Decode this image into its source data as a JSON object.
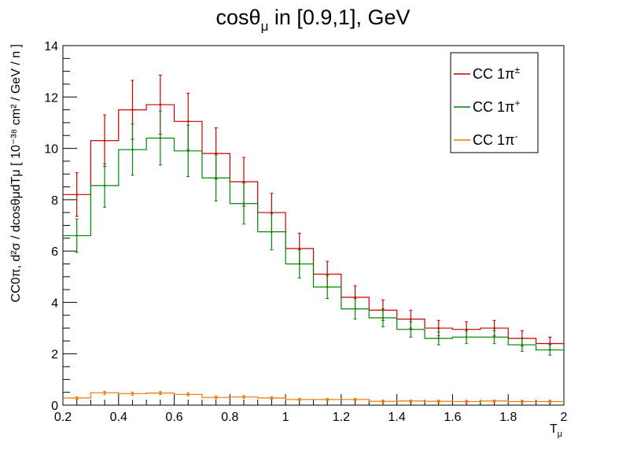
{
  "chart_data": {
    "type": "line",
    "drawstyle": "step-histogram",
    "title": {
      "main": "cos",
      "theta": "θ",
      "sub": "μ",
      "rest": " in [0.9,1], GeV"
    },
    "xlabel": {
      "main": "T",
      "sub": "μ"
    },
    "ylabel": "CC0π, d²σ / dcosθμdTμ [ 10⁻³⁸ cm² / GeV / n ]",
    "xlim": [
      0.2,
      2.0
    ],
    "ylim": [
      0,
      14
    ],
    "x_ticks": [
      0.2,
      0.4,
      0.6,
      0.8,
      1.0,
      1.2,
      1.4,
      1.6,
      1.8,
      2.0
    ],
    "x_tick_labels": [
      "0.2",
      "0.4",
      "0.6",
      "0.8",
      "1",
      "1.2",
      "1.4",
      "1.6",
      "1.8",
      "2"
    ],
    "y_ticks": [
      0,
      2,
      4,
      6,
      8,
      10,
      12,
      14
    ],
    "y_tick_labels": [
      "0",
      "2",
      "4",
      "6",
      "8",
      "10",
      "12",
      "14"
    ],
    "bin_edges": [
      0.2,
      0.3,
      0.4,
      0.5,
      0.6,
      0.7,
      0.8,
      0.9,
      1.0,
      1.1,
      1.2,
      1.3,
      1.4,
      1.5,
      1.6,
      1.7,
      1.8,
      1.9,
      2.0
    ],
    "legend_position": "top-right",
    "series": [
      {
        "name": "CC 1π±",
        "color": "#cc0000",
        "values": [
          8.2,
          10.3,
          11.5,
          11.7,
          11.05,
          9.8,
          8.7,
          7.5,
          6.1,
          5.1,
          4.2,
          3.7,
          3.35,
          3.0,
          2.95,
          3.0,
          2.6,
          2.4
        ],
        "errors": [
          0.85,
          1.0,
          1.15,
          1.15,
          1.1,
          1.0,
          0.95,
          0.75,
          0.6,
          0.5,
          0.45,
          0.4,
          0.35,
          0.3,
          0.3,
          0.3,
          0.3,
          0.25
        ]
      },
      {
        "name": "CC 1π+",
        "color": "#008800",
        "values": [
          6.6,
          8.55,
          9.95,
          10.4,
          9.9,
          8.85,
          7.85,
          6.75,
          5.5,
          4.6,
          3.75,
          3.4,
          2.95,
          2.6,
          2.65,
          2.65,
          2.35,
          2.15
        ],
        "errors": [
          0.65,
          0.85,
          1.0,
          1.05,
          1.0,
          0.9,
          0.8,
          0.7,
          0.55,
          0.45,
          0.4,
          0.35,
          0.3,
          0.25,
          0.25,
          0.25,
          0.25,
          0.2
        ]
      },
      {
        "name": "CC 1π-",
        "color": "#ee7700",
        "values": [
          0.28,
          0.48,
          0.45,
          0.47,
          0.42,
          0.3,
          0.32,
          0.28,
          0.22,
          0.22,
          0.22,
          0.15,
          0.16,
          0.15,
          0.14,
          0.16,
          0.14,
          0.14
        ],
        "errors": [
          0.05,
          0.06,
          0.06,
          0.06,
          0.06,
          0.05,
          0.05,
          0.05,
          0.04,
          0.04,
          0.04,
          0.04,
          0.04,
          0.04,
          0.04,
          0.04,
          0.04,
          0.04
        ]
      }
    ],
    "legend": [
      {
        "label_main": "CC 1π",
        "label_sup": "±",
        "color": "#cc0000"
      },
      {
        "label_main": "CC 1π",
        "label_sup": "+",
        "color": "#008800"
      },
      {
        "label_main": "CC 1π",
        "label_sup": "-",
        "color": "#ee7700"
      }
    ]
  }
}
